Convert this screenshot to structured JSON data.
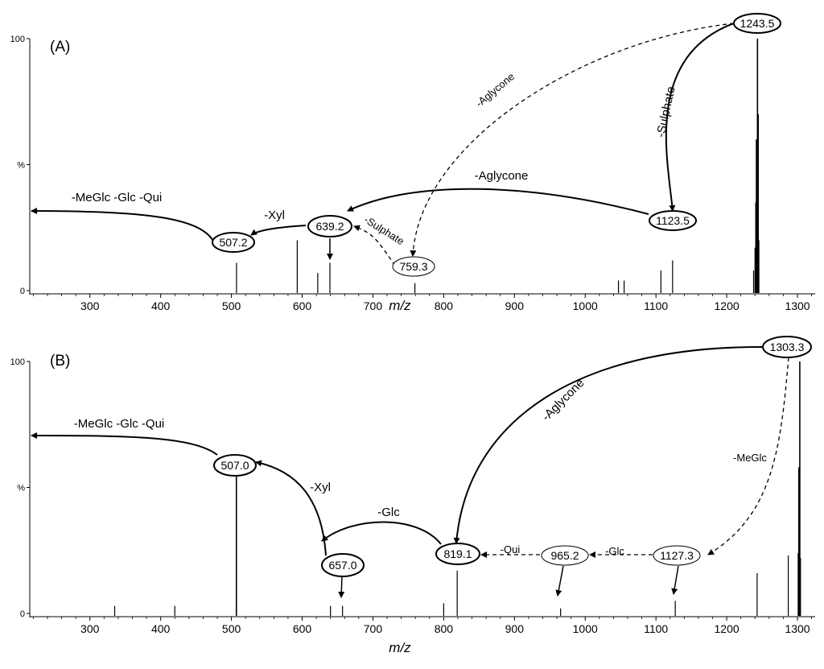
{
  "chart_data": [
    {
      "type": "bar",
      "panel_label": "(A)",
      "xlabel": "m/z",
      "ylabel": "%",
      "xlim": [
        215,
        1325
      ],
      "ylim": [
        0,
        100
      ],
      "x_ticks": [
        300,
        400,
        500,
        600,
        700,
        800,
        900,
        1000,
        1100,
        1200,
        1300
      ],
      "y_ticks": [
        {
          "value": 0,
          "label": "0"
        },
        {
          "value": 50,
          "label": "%"
        },
        {
          "value": 100,
          "label": "100"
        }
      ],
      "peaks": [
        {
          "mz": 507.2,
          "intensity": 11
        },
        {
          "mz": 593,
          "intensity": 20
        },
        {
          "mz": 622,
          "intensity": 7
        },
        {
          "mz": 639.2,
          "intensity": 11
        },
        {
          "mz": 759.3,
          "intensity": 3
        },
        {
          "mz": 1047,
          "intensity": 4
        },
        {
          "mz": 1055,
          "intensity": 4
        },
        {
          "mz": 1107,
          "intensity": 8
        },
        {
          "mz": 1123.5,
          "intensity": 12
        },
        {
          "mz": 1238,
          "intensity": 8
        },
        {
          "mz": 1240,
          "intensity": 17
        },
        {
          "mz": 1241,
          "intensity": 35
        },
        {
          "mz": 1242,
          "intensity": 60
        },
        {
          "mz": 1243.5,
          "intensity": 100
        },
        {
          "mz": 1244.5,
          "intensity": 70
        },
        {
          "mz": 1245.5,
          "intensity": 20
        }
      ],
      "labeled_peaks": [
        {
          "mz": 1243.5,
          "label": "1243.5"
        },
        {
          "mz": 1123.5,
          "label": "1123.5"
        },
        {
          "mz": 759.3,
          "label": "759.3"
        },
        {
          "mz": 639.2,
          "label": "639.2"
        },
        {
          "mz": 507.2,
          "label": "507.2"
        }
      ],
      "annotations": [
        {
          "label": "-Sulphate",
          "from": "1243.5",
          "to": "1123.5",
          "style": "solid"
        },
        {
          "label": "-Aglycone",
          "from": "1243.5",
          "to": "759.3",
          "style": "dashed"
        },
        {
          "label": "-Aglycone",
          "from": "1123.5",
          "to": "639.2",
          "style": "solid"
        },
        {
          "label": "-Sulphate",
          "from": "759.3",
          "to": "639.2",
          "style": "dashed"
        },
        {
          "label": "-Xyl",
          "from": "639.2",
          "to": "507.2",
          "style": "solid"
        },
        {
          "label": "-MeGlc -Glc -Qui",
          "from": "507.2",
          "to": "",
          "style": "solid"
        }
      ]
    },
    {
      "type": "bar",
      "panel_label": "(B)",
      "xlabel": "m/z",
      "ylabel": "%",
      "xlim": [
        215,
        1325
      ],
      "ylim": [
        0,
        100
      ],
      "x_ticks": [
        300,
        400,
        500,
        600,
        700,
        800,
        900,
        1000,
        1100,
        1200,
        1300
      ],
      "y_ticks": [
        {
          "value": 0,
          "label": "0"
        },
        {
          "value": 50,
          "label": "%"
        },
        {
          "value": 100,
          "label": "100"
        }
      ],
      "peaks": [
        {
          "mz": 335,
          "intensity": 3
        },
        {
          "mz": 420,
          "intensity": 3
        },
        {
          "mz": 507.0,
          "intensity": 55
        },
        {
          "mz": 640,
          "intensity": 3
        },
        {
          "mz": 657.0,
          "intensity": 3
        },
        {
          "mz": 800,
          "intensity": 4
        },
        {
          "mz": 819.1,
          "intensity": 17
        },
        {
          "mz": 965.2,
          "intensity": 2
        },
        {
          "mz": 1127.3,
          "intensity": 5
        },
        {
          "mz": 1243,
          "intensity": 16
        },
        {
          "mz": 1287,
          "intensity": 23
        },
        {
          "mz": 1301,
          "intensity": 24
        },
        {
          "mz": 1302,
          "intensity": 58
        },
        {
          "mz": 1303.3,
          "intensity": 100
        },
        {
          "mz": 1304.3,
          "intensity": 22
        }
      ],
      "labeled_peaks": [
        {
          "mz": 1303.3,
          "label": "1303.3"
        },
        {
          "mz": 1127.3,
          "label": "1127.3"
        },
        {
          "mz": 965.2,
          "label": "965.2"
        },
        {
          "mz": 819.1,
          "label": "819.1"
        },
        {
          "mz": 657.0,
          "label": "657.0"
        },
        {
          "mz": 507.0,
          "label": "507.0"
        }
      ],
      "annotations": [
        {
          "label": "-Aglycone",
          "from": "1303.3",
          "to": "819.1",
          "style": "solid"
        },
        {
          "label": "-MeGlc",
          "from": "1303.3",
          "to": "1127.3",
          "style": "dashed"
        },
        {
          "label": "-Glc",
          "from": "1127.3",
          "to": "965.2",
          "style": "dashed"
        },
        {
          "label": "-Qui",
          "from": "965.2",
          "to": "819.1",
          "style": "dashed"
        },
        {
          "label": "-Glc",
          "from": "819.1",
          "to": "657.0",
          "style": "solid"
        },
        {
          "label": "-Xyl",
          "from": "657.0",
          "to": "507.0",
          "style": "solid"
        },
        {
          "label": "-MeGlc -Glc -Qui",
          "from": "507.0",
          "to": "",
          "style": "solid"
        }
      ]
    }
  ]
}
